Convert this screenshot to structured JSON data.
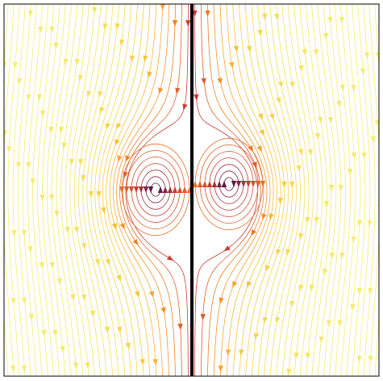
{
  "chart_data": {
    "type": "streamplot"
  }
}
